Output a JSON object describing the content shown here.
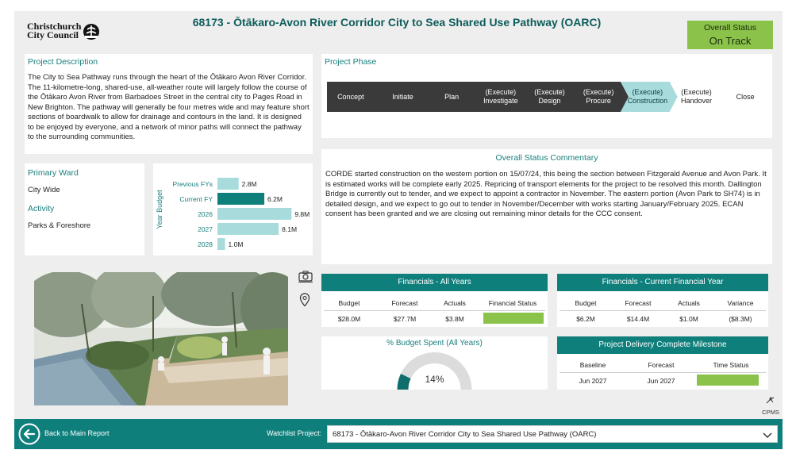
{
  "header": {
    "logo_line1": "Christchurch",
    "logo_line2": "City Council",
    "title": "68173 - Ōtākaro-Avon River Corridor City to Sea Shared Use Pathway (OARC)",
    "status_label": "Overall Status",
    "status_value": "On Track",
    "status_color": "#8bc34a"
  },
  "description": {
    "title": "Project Description",
    "text": "The City to Sea Pathway runs through the heart of the Ōtākaro Avon River Corridor. The 11-kilometre-long, shared-use, all-weather route will largely follow the course of the Ōtākaro Avon River from Barbadoes Street in the central city to Pages Road in New Brighton. The pathway will generally be four metres wide and may feature short sections of boardwalk to allow for drainage and contours in the land. It is designed to be enjoyed by everyone, and a network of minor paths will connect the pathway to the surrounding communities."
  },
  "phase": {
    "title": "Project Phase",
    "steps": [
      {
        "l1": "Concept",
        "l2": ""
      },
      {
        "l1": "Initiate",
        "l2": ""
      },
      {
        "l1": "Plan",
        "l2": ""
      },
      {
        "l1": "(Execute)",
        "l2": "Investigate"
      },
      {
        "l1": "(Execute)",
        "l2": "Design"
      },
      {
        "l1": "(Execute)",
        "l2": "Procure"
      },
      {
        "l1": "(Execute)",
        "l2": "Construction"
      },
      {
        "l1": "(Execute)",
        "l2": "Handover"
      },
      {
        "l1": "Close",
        "l2": ""
      }
    ],
    "current_index": 6
  },
  "ward": {
    "ward_label": "Primary Ward",
    "ward_value": "City Wide",
    "activity_label": "Activity",
    "activity_value": "Parks & Foreshore"
  },
  "budget_chart": {
    "axis_label": "Year Budget",
    "rows": [
      {
        "label": "Previous FYs",
        "value": 2.8,
        "text": "2.8M",
        "highlight": false
      },
      {
        "label": "Current FY",
        "value": 6.2,
        "text": "6.2M",
        "highlight": true
      },
      {
        "label": "2026",
        "value": 9.8,
        "text": "9.8M",
        "highlight": false
      },
      {
        "label": "2027",
        "value": 8.1,
        "text": "8.1M",
        "highlight": false
      },
      {
        "label": "2028",
        "value": 1.0,
        "text": "1.0M",
        "highlight": false
      }
    ]
  },
  "commentary": {
    "title": "Overall Status Commentary",
    "text": "CORDE started construction on the western portion on 15/07/24, this being the section between Fitzgerald Avenue and Avon Park. It is estimated works will be complete early 2025. Repricing of transport elements for the project to be resolved this month. Dallington Bridge is currently out to tender, and we expect to appoint a contractor in November. The eastern portion (Avon Park to SH74) is in detailed design, and we expect to go out to tender in November/December with works starting January/February 2025. ECAN consent has been granted and we are closing out remaining minor details for the CCC consent."
  },
  "fin_all": {
    "title": "Financials - All Years",
    "cols": [
      "Budget",
      "Forecast",
      "Actuals",
      "Financial Status"
    ],
    "vals": [
      "$28.0M",
      "$27.7M",
      "$3.8M"
    ],
    "status_color": "#8bc34a"
  },
  "fin_current": {
    "title": "Financials - Current Financial Year",
    "cols": [
      "Budget",
      "Forecast",
      "Actuals",
      "Variance"
    ],
    "vals": [
      "$6.2M",
      "$14.4M",
      "$1.0M",
      "($8.3M)"
    ]
  },
  "budget_spent": {
    "title": "% Budget Spent (All Years)",
    "value_text": "14%",
    "fraction": 0.14
  },
  "milestone": {
    "title": "Project Delivery Complete Milestone",
    "cols": [
      "Baseline",
      "Forecast",
      "Time Status"
    ],
    "vals": [
      "Jun 2027",
      "Jun 2027"
    ],
    "status_color": "#8bc34a"
  },
  "icons": {
    "camera": "camera-icon",
    "location": "location-pin-icon",
    "cpms_label": "CPMS"
  },
  "footer": {
    "back_label": "Back to Main Report",
    "watchlist_label": "Watchlist Project:",
    "watchlist_value": "68173 - Ōtākaro-Avon River Corridor City to Sea Shared Use Pathway (OARC)"
  }
}
